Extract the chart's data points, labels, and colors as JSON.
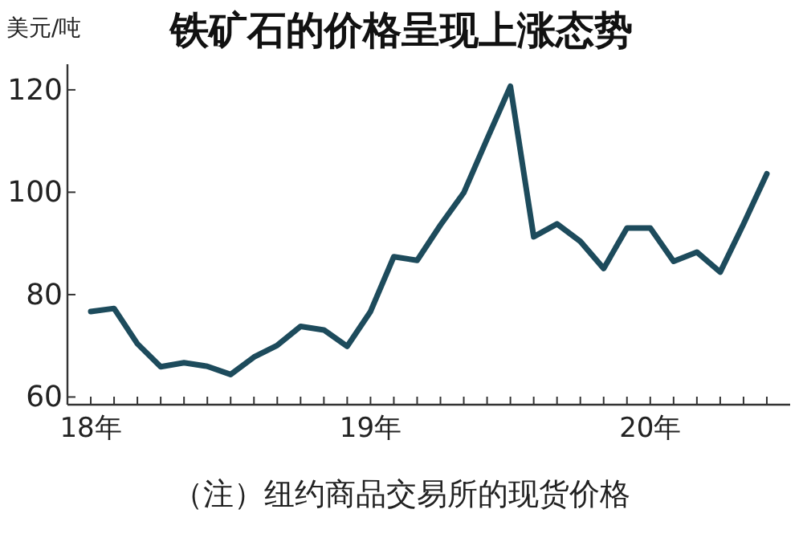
{
  "chart_data": {
    "type": "line",
    "title": "铁矿石的价格呈现上涨态势",
    "ylabel": "美元/吨",
    "annotations": [
      "（注）纽约商品交易所的现货价格"
    ],
    "x": [
      "2018-01",
      "2018-02",
      "2018-03",
      "2018-04",
      "2018-05",
      "2018-06",
      "2018-07",
      "2018-08",
      "2018-09",
      "2018-10",
      "2018-11",
      "2018-12",
      "2019-01",
      "2019-02",
      "2019-03",
      "2019-04",
      "2019-05",
      "2019-06",
      "2019-07",
      "2019-08",
      "2019-09",
      "2019-10",
      "2019-11",
      "2019-12",
      "2020-01",
      "2020-02",
      "2020-03",
      "2020-04",
      "2020-05",
      "2020-06"
    ],
    "series": [
      {
        "color": "#1d4b5c",
        "values": [
          76.7,
          77.3,
          70.4,
          65.9,
          66.7,
          66,
          64.4,
          67.8,
          70.1,
          73.8,
          73.1,
          69.9,
          76.7,
          87.4,
          86.7,
          93.6,
          99.9,
          110.4,
          120.7,
          91.3,
          93.8,
          90.4,
          85.1,
          93,
          93,
          86.5,
          88.3,
          84.4,
          93.8,
          103.6
        ]
      }
    ],
    "xlim": [
      "2017-12",
      "2020-07"
    ],
    "xticks": [
      {
        "value": "2018-01",
        "label": "18年"
      },
      {
        "value": "2018-02",
        "label": null
      },
      {
        "value": "2018-03",
        "label": null
      },
      {
        "value": "2018-04",
        "label": null
      },
      {
        "value": "2018-05",
        "label": null
      },
      {
        "value": "2018-06",
        "label": null
      },
      {
        "value": "2018-07",
        "label": null
      },
      {
        "value": "2018-08",
        "label": null
      },
      {
        "value": "2018-09",
        "label": null
      },
      {
        "value": "2018-10",
        "label": null
      },
      {
        "value": "2018-11",
        "label": null
      },
      {
        "value": "2018-12",
        "label": null
      },
      {
        "value": "2019-01",
        "label": "19年"
      },
      {
        "value": "2019-02",
        "label": null
      },
      {
        "value": "2019-03",
        "label": null
      },
      {
        "value": "2019-04",
        "label": null
      },
      {
        "value": "2019-05",
        "label": null
      },
      {
        "value": "2019-06",
        "label": null
      },
      {
        "value": "2019-07",
        "label": null
      },
      {
        "value": "2019-08",
        "label": null
      },
      {
        "value": "2019-09",
        "label": null
      },
      {
        "value": "2019-10",
        "label": null
      },
      {
        "value": "2019-11",
        "label": null
      },
      {
        "value": "2019-12",
        "label": null
      },
      {
        "value": "2020-01",
        "label": "20年"
      },
      {
        "value": "2020-02",
        "label": null
      },
      {
        "value": "2020-03",
        "label": null
      },
      {
        "value": "2020-04",
        "label": null
      },
      {
        "value": "2020-05",
        "label": null
      },
      {
        "value": "2020-06",
        "label": null
      }
    ],
    "ylim": [
      58.5,
      125
    ],
    "yticks": [
      60,
      80,
      100,
      120
    ],
    "grid": false,
    "marker": "none",
    "line_style": "solid"
  }
}
